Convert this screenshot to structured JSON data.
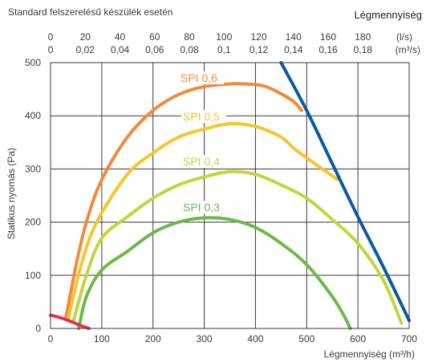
{
  "chart_data": {
    "type": "line",
    "subtitle": "Standard felszerelésű készülék esetén",
    "top_axis_title": "Légmennyiség",
    "xlabel": "Légmennyiség (m³/h)",
    "ylabel": "Statikus nyomás (Pa)",
    "xlim": [
      0,
      700
    ],
    "ylim": [
      0,
      500
    ],
    "x_ticks": [
      0,
      100,
      200,
      300,
      400,
      500,
      600,
      700
    ],
    "y_ticks": [
      0,
      100,
      200,
      300,
      400,
      500
    ],
    "top_ticks_ls": [
      "0",
      "20",
      "40",
      "60",
      "80",
      "100",
      "120",
      "140",
      "160",
      "180"
    ],
    "top_ticks_m3s": [
      "0",
      "0,02",
      "0,04",
      "0,06",
      "0,08",
      "0,1",
      "0,12",
      "0,14",
      "0,16",
      "0,18"
    ],
    "top_unit_ls": "(l/s)",
    "top_unit_m3s": "(m³/s)",
    "grid": true,
    "series": [
      {
        "name": "SPI 0,6",
        "color": "#f08a3c",
        "x": [
          30,
          50,
          70,
          100,
          150,
          200,
          250,
          300,
          350,
          380,
          420,
          470,
          490
        ],
        "y": [
          20,
          120,
          200,
          280,
          360,
          410,
          440,
          455,
          460,
          460,
          455,
          430,
          410
        ]
      },
      {
        "name": "SPI 0,5",
        "color": "#f7c52c",
        "x": [
          35,
          60,
          90,
          150,
          200,
          250,
          300,
          350,
          400,
          450,
          480,
          560
        ],
        "y": [
          20,
          120,
          200,
          290,
          330,
          360,
          375,
          385,
          380,
          360,
          335,
          280
        ]
      },
      {
        "name": "SPI 0,4",
        "color": "#c3d53b",
        "x": [
          45,
          70,
          100,
          150,
          200,
          250,
          300,
          350,
          400,
          450,
          500,
          550,
          600,
          650,
          685
        ],
        "y": [
          15,
          100,
          170,
          210,
          245,
          270,
          285,
          295,
          290,
          270,
          245,
          205,
          160,
          90,
          10
        ]
      },
      {
        "name": "SPI 0,3",
        "color": "#6db84b",
        "x": [
          55,
          70,
          100,
          150,
          200,
          250,
          300,
          350,
          400,
          450,
          500,
          550,
          575,
          585
        ],
        "y": [
          0,
          60,
          110,
          145,
          180,
          200,
          208,
          205,
          190,
          160,
          120,
          60,
          20,
          0
        ]
      },
      {
        "name": "",
        "color": "#0b5aa0",
        "x": [
          450,
          500,
          550,
          600,
          650,
          700
        ],
        "y": [
          500,
          410,
          310,
          210,
          115,
          15
        ]
      },
      {
        "name": "",
        "color": "#e03250",
        "x": [
          0,
          20,
          40,
          60,
          75
        ],
        "y": [
          25,
          20,
          13,
          5,
          0
        ]
      }
    ]
  }
}
